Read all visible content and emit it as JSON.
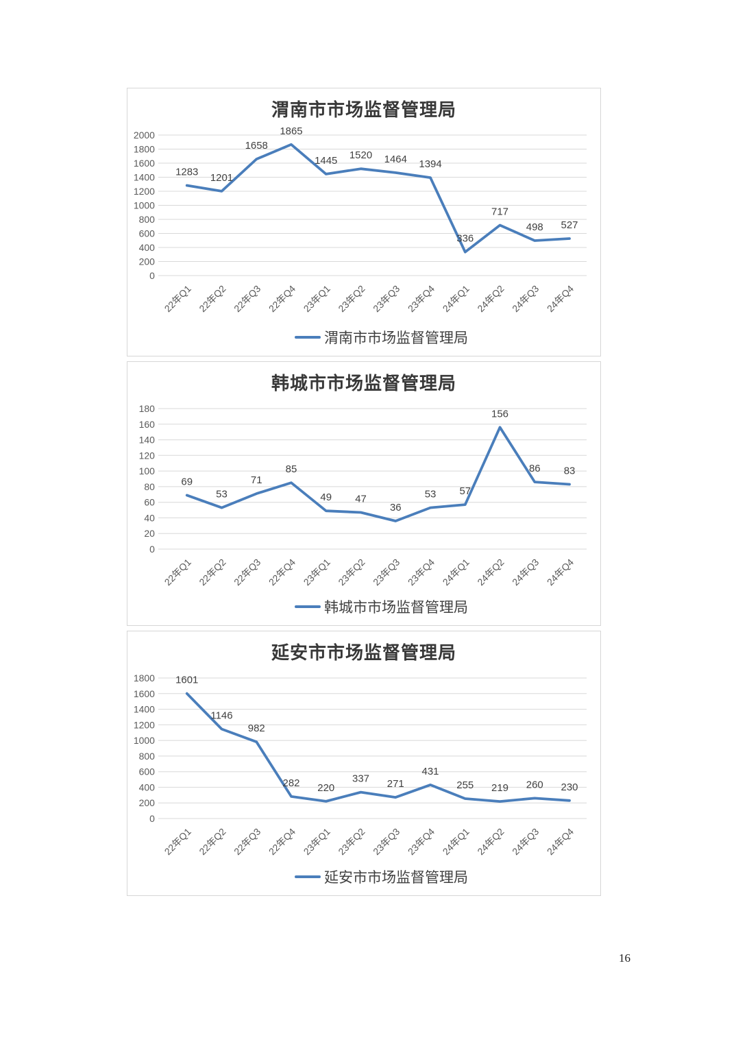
{
  "page": {
    "number": "16",
    "background": "#ffffff"
  },
  "style": {
    "series_color": "#4a7ebb",
    "grid_color": "#d8d8d8",
    "box_border_color": "#d6d6d6",
    "tick_label_color": "#595959",
    "data_label_color": "#404040",
    "title_color": "#383838"
  },
  "chart_data": [
    {
      "type": "line",
      "title": "渭南市市场监督管理局",
      "legend": "渭南市市场监督管理局",
      "legend_position": "bottom",
      "grid": true,
      "categories": [
        "22年Q1",
        "22年Q2",
        "22年Q3",
        "22年Q4",
        "23年Q1",
        "23年Q2",
        "23年Q3",
        "23年Q4",
        "24年Q1",
        "24年Q2",
        "24年Q3",
        "24年Q4"
      ],
      "values": [
        1283,
        1201,
        1658,
        1865,
        1445,
        1520,
        1464,
        1394,
        336,
        717,
        498,
        527
      ],
      "ylim": [
        0,
        2000
      ],
      "ytick_step": 200
    },
    {
      "type": "line",
      "title": "韩城市市场监督管理局",
      "legend": "韩城市市场监督管理局",
      "legend_position": "bottom",
      "grid": true,
      "categories": [
        "22年Q1",
        "22年Q2",
        "22年Q3",
        "22年Q4",
        "23年Q1",
        "23年Q2",
        "23年Q3",
        "23年Q4",
        "24年Q1",
        "24年Q2",
        "24年Q3",
        "24年Q4"
      ],
      "values": [
        69,
        53,
        71,
        85,
        49,
        47,
        36,
        53,
        57,
        156,
        86,
        83
      ],
      "ylim": [
        0,
        180
      ],
      "ytick_step": 20
    },
    {
      "type": "line",
      "title": "延安市市场监督管理局",
      "legend": "延安市市场监督管理局",
      "legend_position": "bottom",
      "grid": true,
      "categories": [
        "22年Q1",
        "22年Q2",
        "22年Q3",
        "22年Q4",
        "23年Q1",
        "23年Q2",
        "23年Q3",
        "23年Q4",
        "24年Q1",
        "24年Q2",
        "24年Q3",
        "24年Q4"
      ],
      "values": [
        1601,
        1146,
        982,
        282,
        220,
        337,
        271,
        431,
        255,
        219,
        260,
        230
      ],
      "ylim": [
        0,
        1800
      ],
      "ytick_step": 200
    }
  ]
}
